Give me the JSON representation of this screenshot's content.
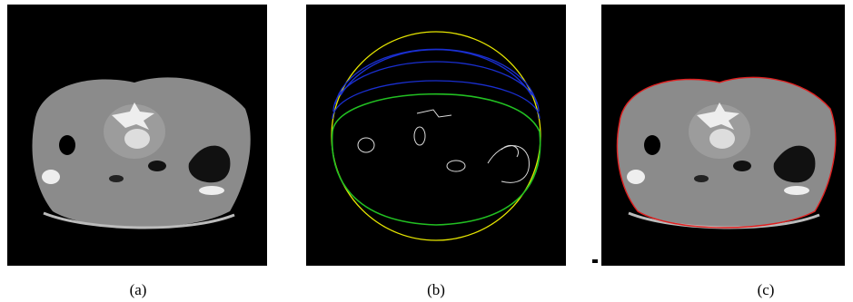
{
  "panels": [
    {
      "caption": "(a)"
    },
    {
      "caption": "(b)"
    },
    {
      "caption": "(c)"
    }
  ]
}
